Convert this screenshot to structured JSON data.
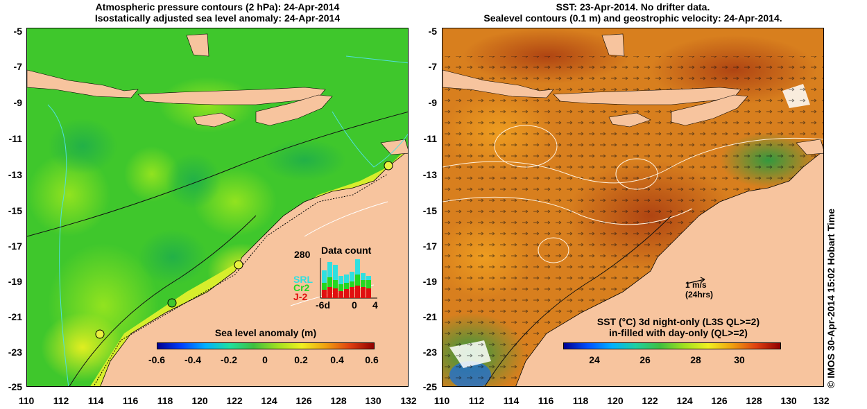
{
  "left_panel": {
    "title_line1": "Atmospheric pressure contours (2 hPa): 24-Apr-2014",
    "title_line2": "Isostatically adjusted sea level anomaly: 24-Apr-2014",
    "colorbar_title": "Sea level anomaly (m)",
    "colorbar_ticks": [
      "-0.6",
      "-0.4",
      "-0.2",
      "0",
      "0.2",
      "0.4",
      "0.6"
    ],
    "inset": {
      "title": "Data count",
      "ymax_label": "280",
      "satellites": [
        {
          "label": "SRL",
          "color": "#2fe0e0"
        },
        {
          "label": "Cr2",
          "color": "#22d822"
        },
        {
          "label": "J-2",
          "color": "#e01010"
        }
      ],
      "x_labels": [
        "-6d",
        "0",
        "4"
      ]
    }
  },
  "right_panel": {
    "title_line1": "SST: 23-Apr-2014. No drifter data.",
    "title_line2": "Sealevel contours (0.1 m) and geostrophic velocity: 24-Apr-2014.",
    "colorbar_title_line1": "SST (°C) 3d night-only (L3S QL>=2)",
    "colorbar_title_line2": "in-filled with day-only (QL>=2)",
    "colorbar_ticks": [
      "24",
      "26",
      "28",
      "30"
    ],
    "velocity_scale_label": "1 m/s",
    "velocity_scale_sublabel": "(24hrs)"
  },
  "axes": {
    "y_ticks": [
      "-5",
      "-7",
      "-9",
      "-11",
      "-13",
      "-15",
      "-17",
      "-19",
      "-21",
      "-23",
      "-25"
    ],
    "x_ticks": [
      "110",
      "112",
      "114",
      "116",
      "118",
      "120",
      "122",
      "124",
      "126",
      "128",
      "130",
      "132"
    ]
  },
  "credit": "© IMOS 30-Apr-2014 15:02 Hobart Time",
  "colors": {
    "land": "#f7c49e",
    "slanomaly_base": "#3fc72c",
    "sst_base": "#d87f1e"
  }
}
